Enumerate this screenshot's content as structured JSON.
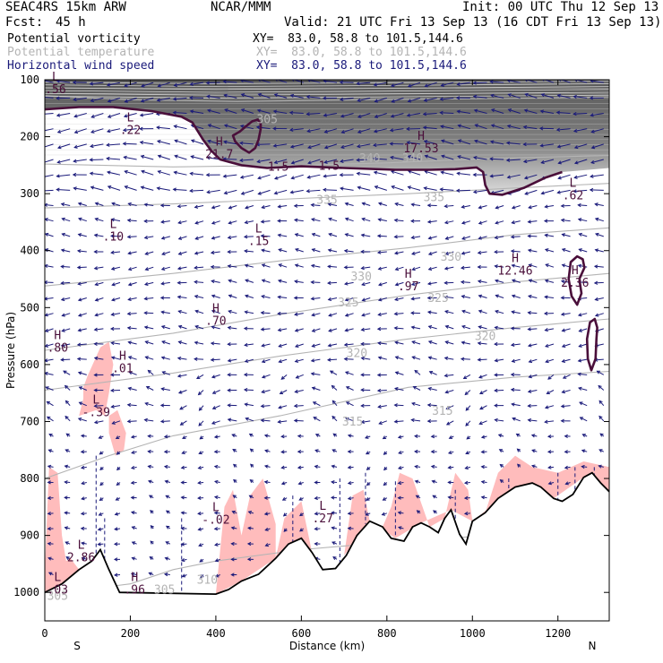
{
  "header": {
    "model": "SEAC4RS 15km ARW",
    "org": "NCAR/MMM",
    "init": "Init: 00 UTC Thu 12 Sep 13",
    "fcst_label": "Fcst:",
    "fcst_value": "45 h",
    "valid": "Valid: 21 UTC Fri 13 Sep 13 (16 CDT Fri 13 Sep 13)"
  },
  "legend": [
    {
      "name": "Potential vorticity",
      "xy": "XY=  83.0, 58.8 to 101.5,144.6",
      "color": "#000000"
    },
    {
      "name": "Potential temperature",
      "xy": "XY=  83.0, 58.8 to 101.5,144.6",
      "color": "#b4b4b4"
    },
    {
      "name": "Horizontal wind speed",
      "xy": "XY=  83.0, 58.8 to 101.5,144.6",
      "color": "#1a1a7a"
    }
  ],
  "colors": {
    "pv_contour": "#4a0f3a",
    "theta_contour": "#b4b4b4",
    "wind_vectors": "#1a1a7a",
    "pink_fill": "#ffbcbc",
    "high_pv_shading": "#555555"
  },
  "chart_data": {
    "type": "cross-section",
    "xlabel": "Distance (km)",
    "ylabel": "Pressure (hPa)",
    "xlim": [
      0,
      1320
    ],
    "ylim": [
      1050,
      100
    ],
    "x_ticks": [
      0,
      200,
      400,
      600,
      800,
      1000,
      1200
    ],
    "y_ticks": [
      100,
      200,
      300,
      400,
      500,
      600,
      700,
      800,
      900,
      1000
    ],
    "x_end_labels": {
      "left": "S",
      "right": "N"
    },
    "terrain_pressure": [
      [
        0,
        1000
      ],
      [
        40,
        985
      ],
      [
        80,
        960
      ],
      [
        110,
        945
      ],
      [
        130,
        925
      ],
      [
        150,
        960
      ],
      [
        175,
        1000
      ],
      [
        400,
        1003
      ],
      [
        430,
        995
      ],
      [
        460,
        980
      ],
      [
        500,
        968
      ],
      [
        540,
        940
      ],
      [
        570,
        915
      ],
      [
        600,
        905
      ],
      [
        625,
        930
      ],
      [
        650,
        960
      ],
      [
        680,
        958
      ],
      [
        705,
        935
      ],
      [
        730,
        900
      ],
      [
        760,
        875
      ],
      [
        790,
        885
      ],
      [
        810,
        905
      ],
      [
        840,
        910
      ],
      [
        860,
        885
      ],
      [
        880,
        878
      ],
      [
        900,
        885
      ],
      [
        920,
        895
      ],
      [
        935,
        870
      ],
      [
        950,
        855
      ],
      [
        970,
        898
      ],
      [
        985,
        915
      ],
      [
        1000,
        875
      ],
      [
        1030,
        860
      ],
      [
        1060,
        835
      ],
      [
        1100,
        815
      ],
      [
        1140,
        808
      ],
      [
        1160,
        815
      ],
      [
        1190,
        835
      ],
      [
        1210,
        840
      ],
      [
        1235,
        828
      ],
      [
        1260,
        798
      ],
      [
        1280,
        790
      ],
      [
        1300,
        808
      ],
      [
        1320,
        823
      ]
    ],
    "theta_contours": [
      {
        "label": "305",
        "points": [
          [
            0,
            128
          ],
          [
            200,
            135
          ],
          [
            450,
            138
          ],
          [
            750,
            135
          ],
          [
            1050,
            133
          ],
          [
            1320,
            130
          ]
        ]
      },
      {
        "label": "340",
        "points": [
          [
            0,
            248
          ],
          [
            300,
            253
          ],
          [
            600,
            250
          ],
          [
            800,
            246
          ],
          [
            1050,
            238
          ],
          [
            1320,
            233
          ]
        ]
      },
      {
        "label": "335",
        "points": [
          [
            0,
            325
          ],
          [
            300,
            318
          ],
          [
            550,
            310
          ],
          [
            850,
            300
          ],
          [
            1100,
            290
          ],
          [
            1320,
            282
          ]
        ]
      },
      {
        "label": "330",
        "points": [
          [
            0,
            462
          ],
          [
            300,
            440
          ],
          [
            550,
            418
          ],
          [
            850,
            395
          ],
          [
            1100,
            372
          ],
          [
            1320,
            360
          ]
        ]
      },
      {
        "label": "325",
        "points": [
          [
            0,
            575
          ],
          [
            300,
            545
          ],
          [
            550,
            512
          ],
          [
            850,
            478
          ],
          [
            1100,
            455
          ],
          [
            1320,
            440
          ]
        ]
      },
      {
        "label": "320",
        "points": [
          [
            0,
            645
          ],
          [
            300,
            615
          ],
          [
            550,
            585
          ],
          [
            850,
            555
          ],
          [
            1100,
            535
          ],
          [
            1320,
            520
          ]
        ]
      },
      {
        "label": "315",
        "points": [
          [
            0,
            800
          ],
          [
            150,
            760
          ],
          [
            300,
            725
          ],
          [
            550,
            690
          ],
          [
            850,
            640
          ],
          [
            1100,
            622
          ],
          [
            1320,
            612
          ]
        ]
      },
      {
        "label": "310",
        "points": [
          [
            40,
            1000
          ],
          [
            200,
            985
          ],
          [
            300,
            960
          ],
          [
            400,
            945
          ],
          [
            600,
            925
          ],
          [
            800,
            912
          ],
          [
            1000,
            902
          ]
        ]
      }
    ],
    "theta_labels": [
      {
        "text": "305",
        "x": 520,
        "p": 176
      },
      {
        "text": "340",
        "x": 760,
        "p": 245
      },
      {
        "text": "340",
        "x": 860,
        "p": 245
      },
      {
        "text": "335",
        "x": 660,
        "p": 318
      },
      {
        "text": "335",
        "x": 910,
        "p": 313
      },
      {
        "text": "330",
        "x": 740,
        "p": 452
      },
      {
        "text": "330",
        "x": 950,
        "p": 418
      },
      {
        "text": "325",
        "x": 710,
        "p": 498
      },
      {
        "text": "325",
        "x": 920,
        "p": 490
      },
      {
        "text": "320",
        "x": 730,
        "p": 587
      },
      {
        "text": "320",
        "x": 1030,
        "p": 557
      },
      {
        "text": "315",
        "x": 720,
        "p": 707
      },
      {
        "text": "315",
        "x": 930,
        "p": 688
      },
      {
        "text": "310",
        "x": 380,
        "p": 985
      },
      {
        "text": "305",
        "x": 280,
        "p": 1002
      },
      {
        "text": "305",
        "x": 30,
        "p": 1013
      }
    ],
    "pv_contours": [
      {
        "label": "1.5",
        "points": [
          [
            0,
            152
          ],
          [
            80,
            148
          ],
          [
            160,
            148
          ],
          [
            250,
            155
          ],
          [
            320,
            165
          ],
          [
            345,
            175
          ],
          [
            370,
            205
          ],
          [
            390,
            225
          ],
          [
            410,
            240
          ],
          [
            460,
            250
          ],
          [
            520,
            255
          ],
          [
            600,
            252
          ],
          [
            700,
            255
          ],
          [
            820,
            258
          ],
          [
            900,
            258
          ],
          [
            960,
            257
          ],
          [
            1010,
            254
          ],
          [
            1025,
            262
          ],
          [
            1030,
            285
          ],
          [
            1040,
            300
          ],
          [
            1070,
            302
          ],
          [
            1120,
            290
          ],
          [
            1170,
            272
          ],
          [
            1210,
            262
          ]
        ]
      },
      {
        "label": "",
        "points": [
          [
            505,
            186
          ],
          [
            505,
            178
          ],
          [
            498,
            170
          ],
          [
            485,
            173
          ],
          [
            470,
            182
          ],
          [
            456,
            191
          ],
          [
            440,
            198
          ],
          [
            445,
            208
          ],
          [
            460,
            220
          ],
          [
            478,
            228
          ],
          [
            492,
            220
          ],
          [
            500,
            205
          ],
          [
            505,
            186
          ]
        ]
      },
      {
        "label": "",
        "points": [
          [
            1250,
            450
          ],
          [
            1262,
            430
          ],
          [
            1258,
            415
          ],
          [
            1245,
            410
          ],
          [
            1230,
            420
          ],
          [
            1225,
            450
          ],
          [
            1232,
            480
          ],
          [
            1245,
            495
          ],
          [
            1255,
            475
          ],
          [
            1250,
            450
          ]
        ]
      },
      {
        "label": "",
        "points": [
          [
            1290,
            555
          ],
          [
            1292,
            535
          ],
          [
            1286,
            520
          ],
          [
            1275,
            526
          ],
          [
            1268,
            555
          ],
          [
            1270,
            590
          ],
          [
            1278,
            610
          ],
          [
            1288,
            590
          ],
          [
            1290,
            555
          ]
        ]
      }
    ],
    "pv_labels": [
      {
        "text": "1.5",
        "x": 546,
        "p": 252
      },
      {
        "text": "1.5",
        "x": 665,
        "p": 250
      }
    ],
    "extrema": [
      {
        "type": "L",
        "value": ".56",
        "x": 25,
        "p": 106
      },
      {
        "type": "L",
        "value": ".22",
        "x": 200,
        "p": 178
      },
      {
        "type": "H",
        "value": "21.7",
        "x": 408,
        "p": 220
      },
      {
        "type": "H",
        "value": "17.53",
        "x": 880,
        "p": 210
      },
      {
        "type": "L",
        "value": ".62",
        "x": 1235,
        "p": 293
      },
      {
        "type": "L",
        "value": ".10",
        "x": 160,
        "p": 365
      },
      {
        "type": "L",
        "value": ".15",
        "x": 500,
        "p": 373
      },
      {
        "type": "H",
        "value": "12.46",
        "x": 1100,
        "p": 425
      },
      {
        "type": "H",
        "value": ".97",
        "x": 850,
        "p": 452
      },
      {
        "type": "H",
        "value": "2.36",
        "x": 1240,
        "p": 446
      },
      {
        "type": "H",
        "value": ".70",
        "x": 400,
        "p": 513
      },
      {
        "type": "H",
        "value": ".80",
        "x": 30,
        "p": 560
      },
      {
        "type": "H",
        "value": ".01",
        "x": 182,
        "p": 596
      },
      {
        "type": "L",
        "value": "-.39",
        "x": 120,
        "p": 673
      },
      {
        "type": "L",
        "value": "-.02",
        "x": 400,
        "p": 862
      },
      {
        "type": "L",
        "value": ".27",
        "x": 650,
        "p": 860
      },
      {
        "type": "L",
        "value": "2.86",
        "x": 85,
        "p": 928
      },
      {
        "type": "H",
        "value": ".96",
        "x": 210,
        "p": 985
      },
      {
        "type": "L",
        "value": ".03",
        "x": 30,
        "p": 985
      }
    ]
  }
}
